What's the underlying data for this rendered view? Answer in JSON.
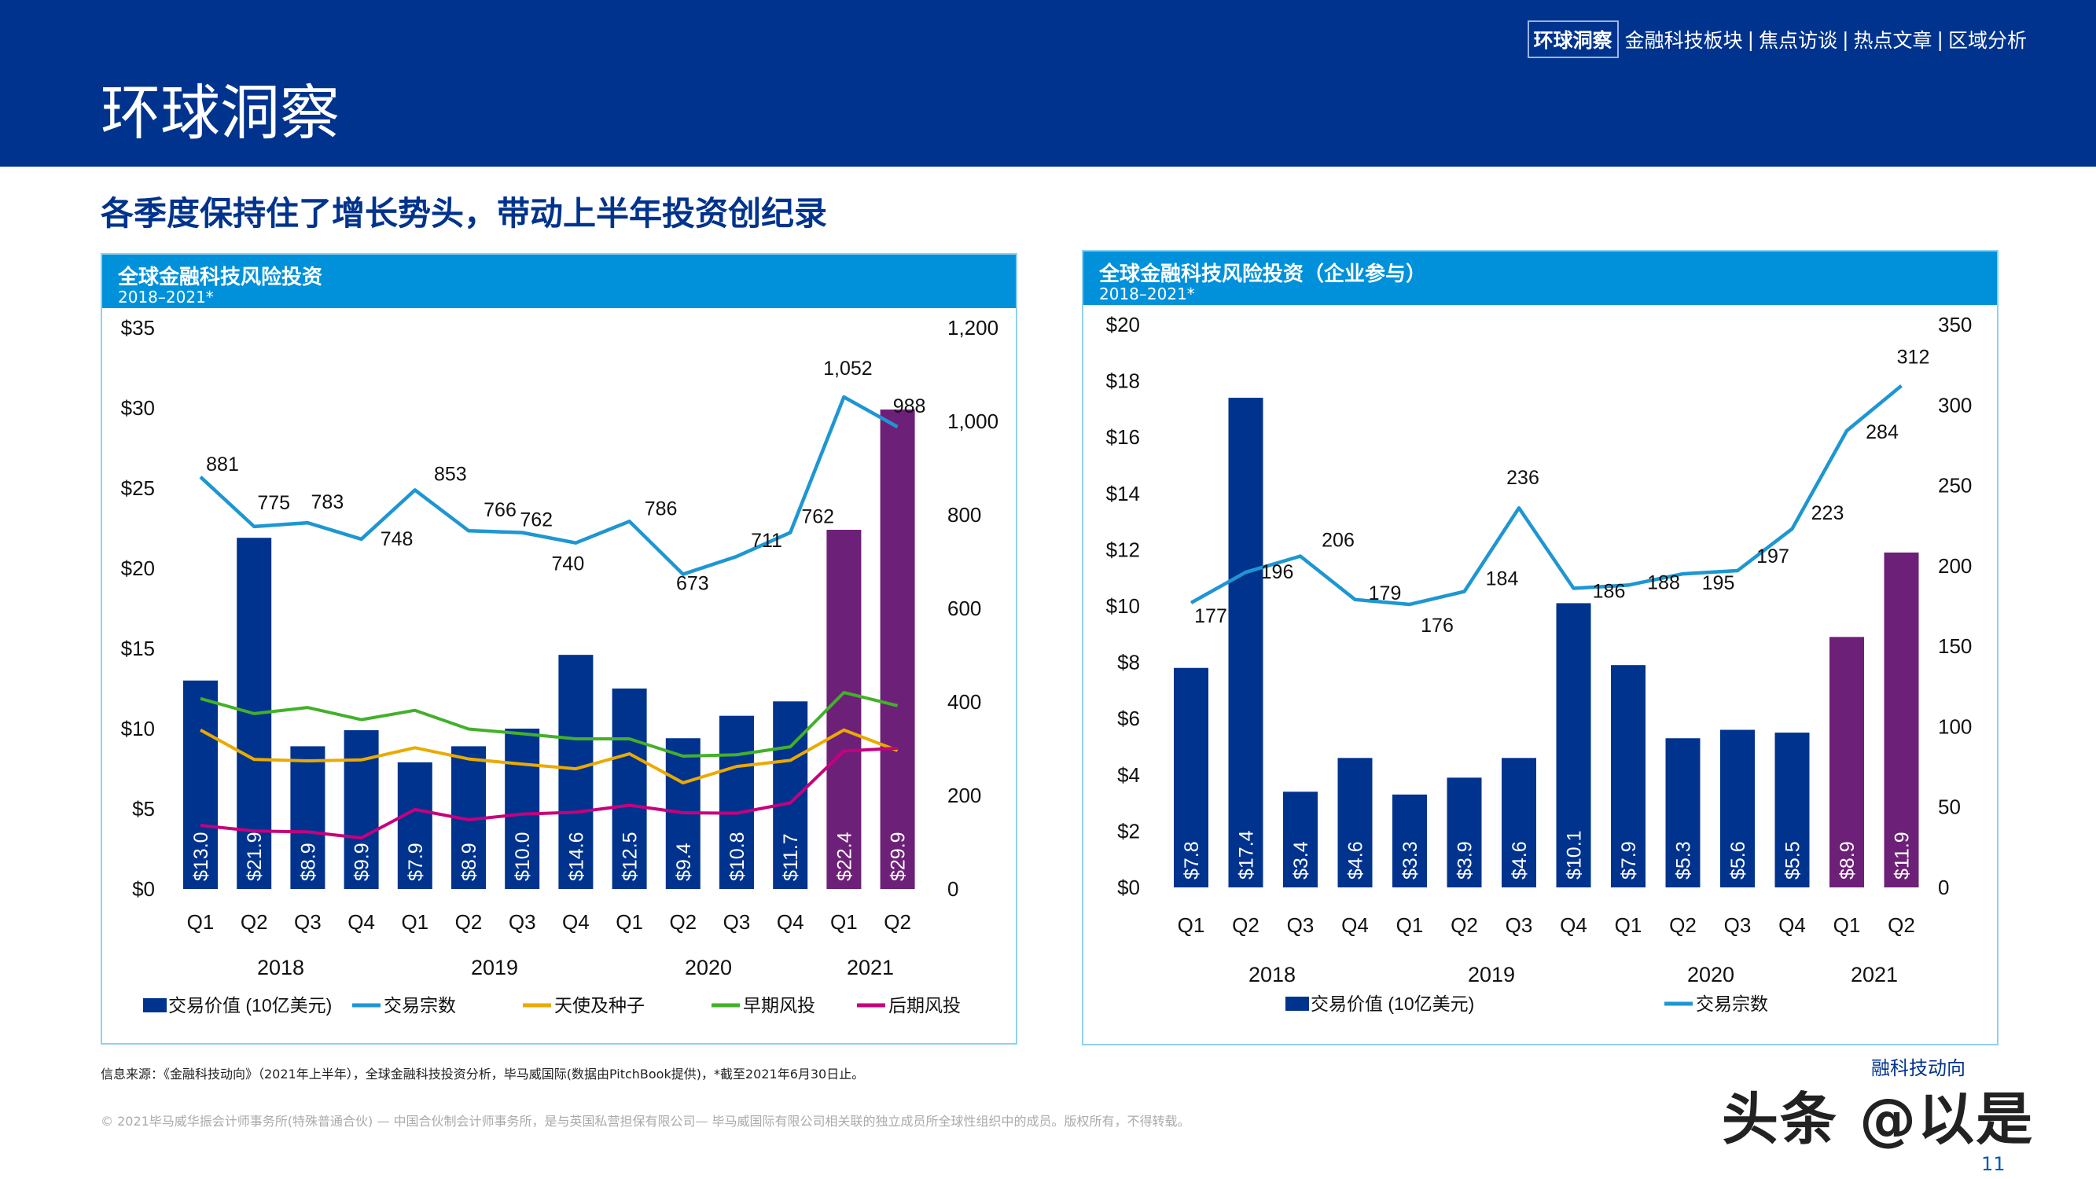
{
  "header": {
    "title": "环球洞察",
    "nav": [
      {
        "label": "环球洞察",
        "active": true
      },
      {
        "label": "金融科技板块"
      },
      {
        "label": "焦点访谈"
      },
      {
        "label": "热点文章"
      },
      {
        "label": "区域分析"
      }
    ],
    "nav_separator": "|"
  },
  "heading": "各季度保持住了增长势头，带动上半年投资创纪录",
  "colors": {
    "navy": "#00338D",
    "blue": "#0091DA",
    "purple": "#6D2077",
    "green": "#43B02A",
    "yellow": "#EAAA00",
    "magenta": "#C6007E"
  },
  "chart_data": [
    {
      "type": "bar",
      "title": "全球金融科技风险投资",
      "subtitle": "2018–2021*",
      "categories": [
        "Q1",
        "Q2",
        "Q3",
        "Q4",
        "Q1",
        "Q2",
        "Q3",
        "Q4",
        "Q1",
        "Q2",
        "Q3",
        "Q4",
        "Q1",
        "Q2"
      ],
      "years": [
        "2018",
        "2019",
        "2020",
        "2021"
      ],
      "y_left": {
        "ticks": [
          "$0",
          "$5",
          "$10",
          "$15",
          "$20",
          "$25",
          "$30",
          "$35"
        ],
        "ylim": [
          0,
          35
        ]
      },
      "y_right": {
        "ticks": [
          "0",
          "200",
          "400",
          "600",
          "800",
          "1,000",
          "1,200"
        ],
        "ylim": [
          0,
          1200
        ]
      },
      "bars": {
        "name": "交易价值 (10亿美元)",
        "values": [
          13.0,
          21.9,
          8.9,
          9.9,
          7.9,
          8.9,
          10.0,
          14.6,
          12.5,
          9.4,
          10.8,
          11.7,
          22.4,
          29.9
        ],
        "labels": [
          "$13.0",
          "$21.9",
          "$8.9",
          "$9.9",
          "$7.9",
          "$8.9",
          "$10.0",
          "$14.6",
          "$12.5",
          "$9.4",
          "$10.8",
          "$11.7",
          "$22.4",
          "$29.9"
        ],
        "highlight_from": 12
      },
      "series": [
        {
          "name": "交易宗数",
          "color": "#1E96D2",
          "values": [
            881,
            775,
            783,
            748,
            853,
            766,
            762,
            740,
            786,
            673,
            711,
            762,
            1052,
            988
          ],
          "labels": [
            "881",
            "775",
            "783",
            "748",
            "853",
            "766",
            "762",
            "740",
            "786",
            "673",
            "711",
            "762",
            "1,052",
            "988"
          ]
        },
        {
          "name": "天使及种子",
          "color": "#EAAA00",
          "values": [
            340,
            277,
            274,
            276,
            302,
            278,
            267,
            257,
            289,
            227,
            262,
            275,
            340,
            296
          ]
        },
        {
          "name": "早期风投",
          "color": "#43B02A",
          "values": [
            407,
            375,
            388,
            362,
            382,
            342,
            332,
            321,
            321,
            284,
            287,
            304,
            420,
            392
          ]
        },
        {
          "name": "后期风投",
          "color": "#C6007E",
          "values": [
            136,
            124,
            122,
            109,
            170,
            148,
            160,
            164,
            179,
            163,
            162,
            184,
            295,
            301
          ]
        }
      ]
    },
    {
      "type": "bar",
      "title": "全球金融科技风险投资（企业参与）",
      "subtitle": "2018–2021*",
      "categories": [
        "Q1",
        "Q2",
        "Q3",
        "Q4",
        "Q1",
        "Q2",
        "Q3",
        "Q4",
        "Q1",
        "Q2",
        "Q3",
        "Q4",
        "Q1",
        "Q2"
      ],
      "years": [
        "2018",
        "2019",
        "2020",
        "2021"
      ],
      "y_left": {
        "ticks": [
          "$0",
          "$2",
          "$4",
          "$6",
          "$8",
          "$10",
          "$12",
          "$14",
          "$16",
          "$18",
          "$20"
        ],
        "ylim": [
          0,
          20
        ]
      },
      "y_right": {
        "ticks": [
          "0",
          "50",
          "100",
          "150",
          "200",
          "250",
          "300",
          "350"
        ],
        "ylim": [
          0,
          350
        ]
      },
      "bars": {
        "name": "交易价值 (10亿美元)",
        "values": [
          7.8,
          17.4,
          3.4,
          4.6,
          3.3,
          3.9,
          4.6,
          10.1,
          7.9,
          5.3,
          5.6,
          5.5,
          8.9,
          11.9
        ],
        "labels": [
          "$7.8",
          "$17.4",
          "$3.4",
          "$4.6",
          "$3.3",
          "$3.9",
          "$4.6",
          "$10.1",
          "$7.9",
          "$5.3",
          "$5.6",
          "$5.5",
          "$8.9",
          "$11.9"
        ],
        "highlight_from": 12
      },
      "series": [
        {
          "name": "交易宗数",
          "color": "#1E96D2",
          "values": [
            177,
            196,
            206,
            179,
            176,
            184,
            236,
            186,
            188,
            195,
            197,
            223,
            284,
            312
          ],
          "labels": [
            "177",
            "196",
            "206",
            "179",
            "176",
            "184",
            "236",
            "186",
            "188",
            "195",
            "197",
            "223",
            "284",
            "312"
          ]
        }
      ]
    }
  ],
  "footer": {
    "source": "信息来源：《金融科技动向》（2021年上半年），全球金融科技投资分析，毕马威国际(数据由PitchBook提供)，*截至2021年6月30日止。",
    "copyright": "© 2021毕马威华振会计师事务所(特殊普通合伙) — 中国合伙制会计师事务所，是与英国私营担保有限公司— 毕马威国际有限公司相关联的独立成员所全球性组织中的成员。版权所有，不得转载。",
    "brand": "融科技动向",
    "page_number": "11",
    "watermark": "头条 @以是"
  }
}
